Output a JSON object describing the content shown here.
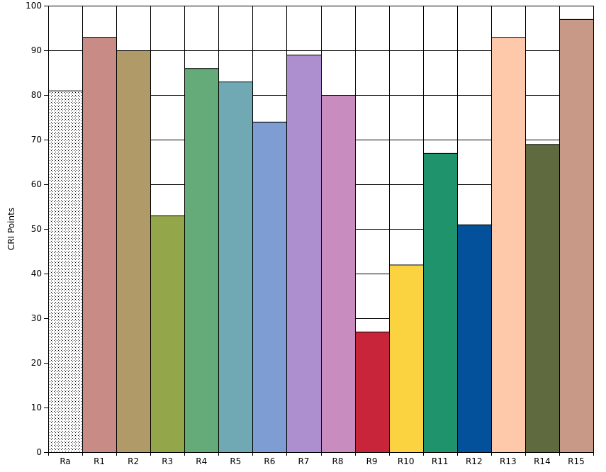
{
  "chart_data": {
    "type": "bar",
    "title": "",
    "xlabel": "",
    "ylabel": "CRI Points",
    "ylim": [
      0,
      100
    ],
    "yticks": [
      0,
      10,
      20,
      30,
      40,
      50,
      60,
      70,
      80,
      90,
      100
    ],
    "grid": true,
    "categories": [
      "Ra",
      "R1",
      "R2",
      "R3",
      "R4",
      "R5",
      "R6",
      "R7",
      "R8",
      "R9",
      "R10",
      "R11",
      "R12",
      "R13",
      "R14",
      "R15"
    ],
    "values": [
      81,
      93,
      90,
      53,
      86,
      83,
      74,
      89,
      80,
      27,
      42,
      67,
      51,
      93,
      69,
      97
    ],
    "colors": [
      "dotted",
      "#c98b86",
      "#b09a68",
      "#93a64a",
      "#64ab79",
      "#70a8b3",
      "#7e9dd3",
      "#ad8fcf",
      "#c98cbf",
      "#c8243a",
      "#fbd23f",
      "#1f936b",
      "#03519a",
      "#fec8ab",
      "#5f6a3f",
      "#c99988"
    ]
  }
}
